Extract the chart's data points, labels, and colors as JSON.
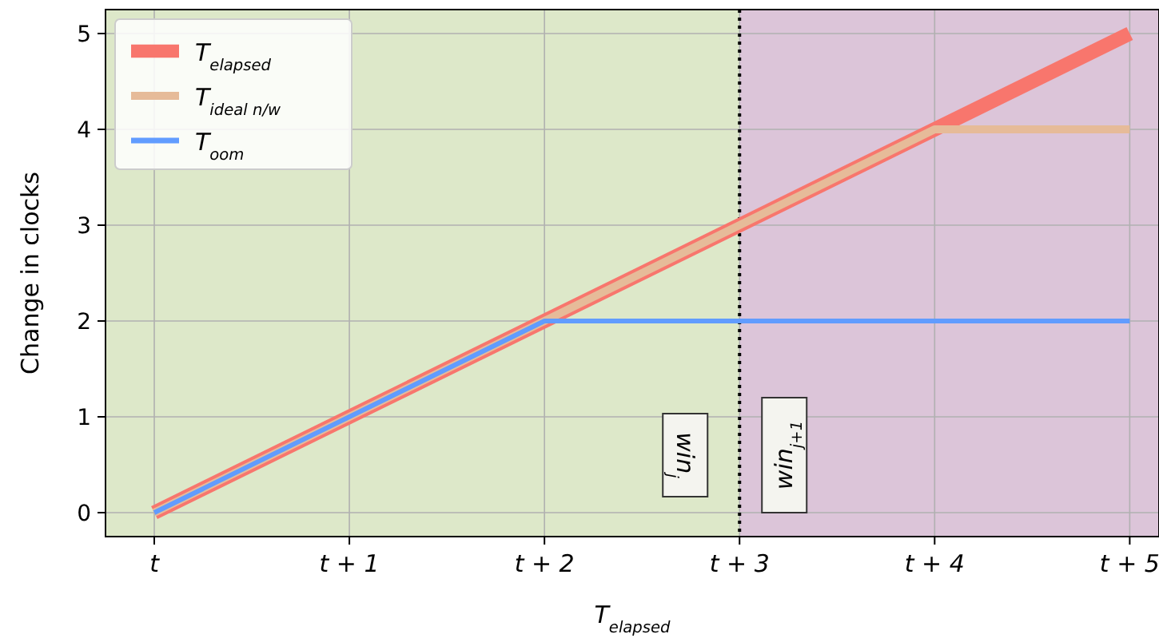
{
  "chart_data": {
    "type": "line",
    "xlabel": "T$_{elapsed}$",
    "ylabel": "Change in clocks",
    "xlim": [
      -0.25,
      5.15
    ],
    "ylim": [
      -0.25,
      5.25
    ],
    "xticks": [
      {
        "value": 0,
        "label": "t"
      },
      {
        "value": 1,
        "label": "t + 1"
      },
      {
        "value": 2,
        "label": "t + 2"
      },
      {
        "value": 3,
        "label": "t + 3"
      },
      {
        "value": 4,
        "label": "t + 4"
      },
      {
        "value": 5,
        "label": "t + 5"
      }
    ],
    "yticks": [
      0,
      1,
      2,
      3,
      4,
      5
    ],
    "series": [
      {
        "name": "T$_{elapsed}$",
        "color": "#f8766d",
        "x": [
          0,
          5
        ],
        "values": [
          0,
          5
        ]
      },
      {
        "name": "T$_{ideal n/w}$",
        "color": "#e6bb99",
        "x": [
          0,
          4,
          5
        ],
        "values": [
          0,
          4,
          4
        ]
      },
      {
        "name": "T$_{oom}$",
        "color": "#619cff",
        "x": [
          0,
          2,
          5
        ],
        "values": [
          0,
          2,
          2
        ]
      }
    ],
    "bands": [
      {
        "axis": "x",
        "from": -0.25,
        "to": 3,
        "label": "win$_{j}$",
        "color": "#dde8c9"
      },
      {
        "axis": "x",
        "from": 3,
        "to": 5.15,
        "label": "win$_{j+1}$",
        "color": "#dcc5d9"
      }
    ],
    "ref_lines": [
      {
        "axis": "x",
        "value": 3,
        "color": "#000000",
        "line_style": "dotted"
      }
    ],
    "grid": true,
    "legend": "top left",
    "marker": "none",
    "line_style": "solid"
  }
}
